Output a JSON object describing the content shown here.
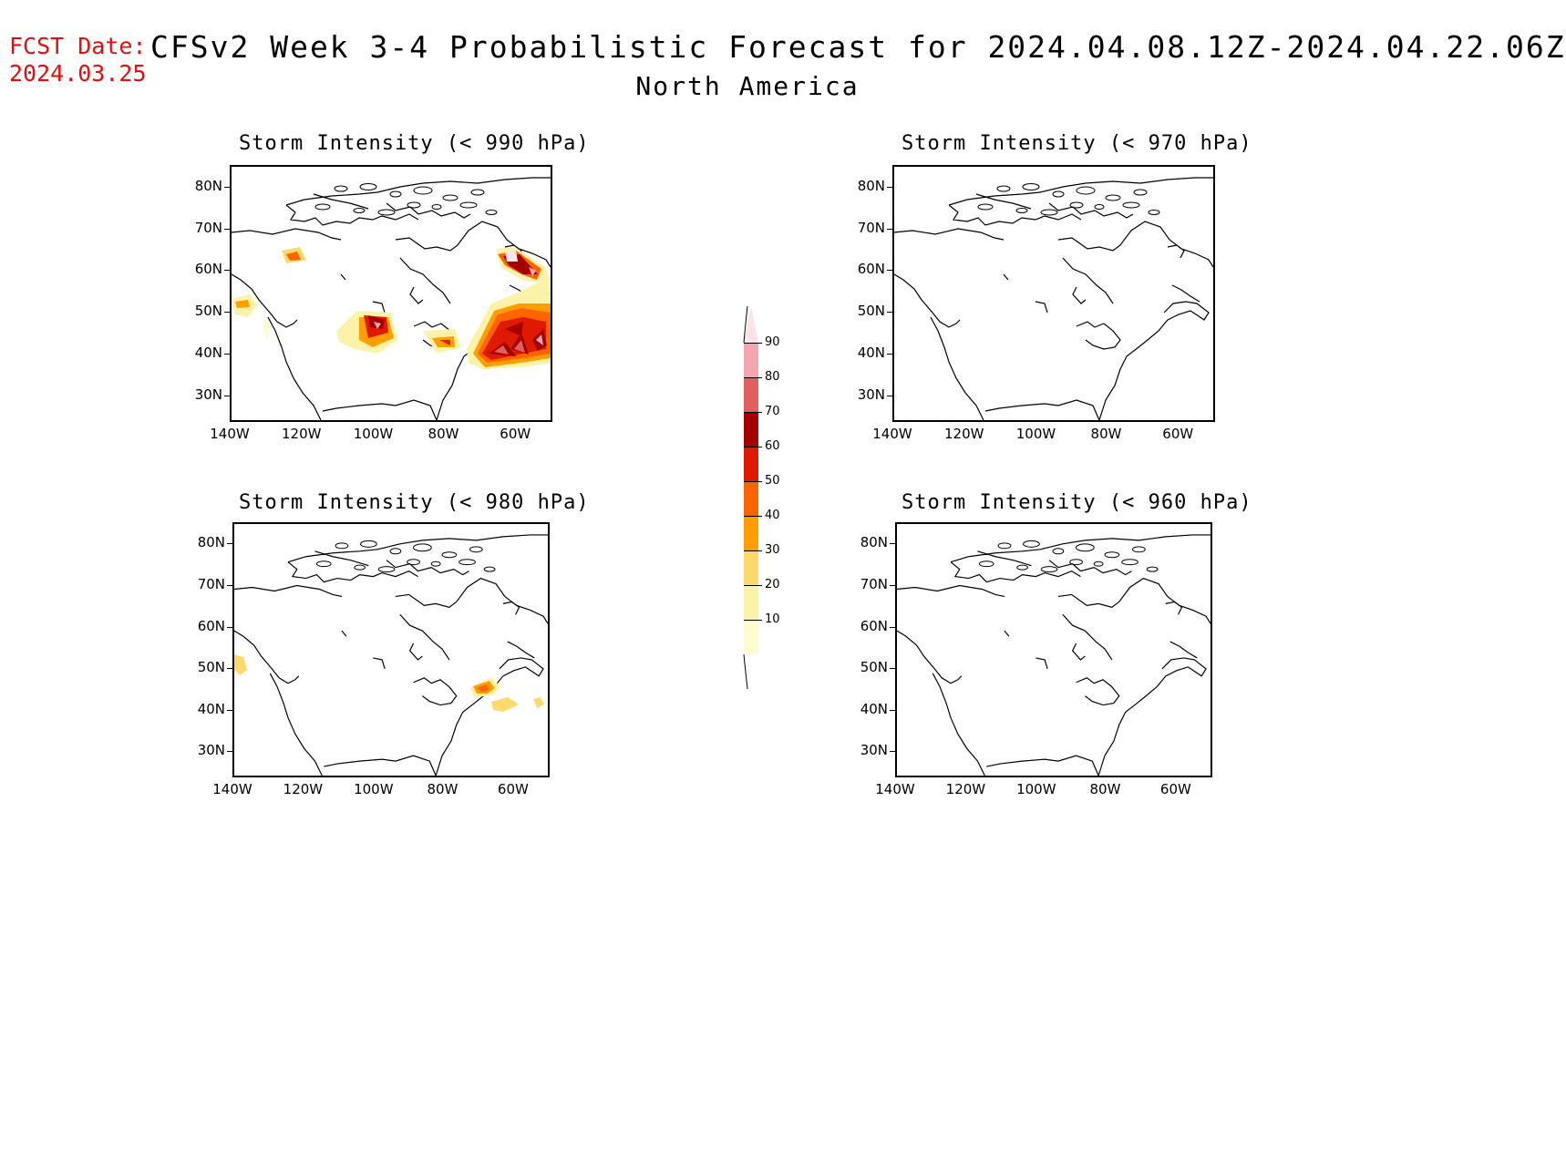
{
  "header": {
    "fcst_label": "FCST Date:",
    "fcst_date": "2024.03.25",
    "title": "CFSv2 Week 3-4 Probabilistic Forecast for 2024.04.08.12Z-2024.04.22.06Z",
    "region": "North America"
  },
  "axes": {
    "lat_ticks": [
      "80N",
      "70N",
      "60N",
      "50N",
      "40N",
      "30N"
    ],
    "lon_ticks": [
      "140W",
      "120W",
      "100W",
      "80W",
      "60W"
    ]
  },
  "panels": [
    {
      "id": "p990",
      "title": "Storm Intensity (< 990 hPa)"
    },
    {
      "id": "p970",
      "title": "Storm Intensity (< 970 hPa)"
    },
    {
      "id": "p980",
      "title": "Storm Intensity (< 980 hPa)"
    },
    {
      "id": "p960",
      "title": "Storm Intensity (< 960 hPa)"
    }
  ],
  "colorbar": {
    "labels": [
      "90",
      "80",
      "70",
      "60",
      "50",
      "40",
      "30",
      "20",
      "10"
    ],
    "colors": [
      "#f4a6ae",
      "#e06060",
      "#a40000",
      "#e01a00",
      "#fc6400",
      "#ff9e00",
      "#fcd96a",
      "#fdf3a8",
      "#fffcd0"
    ],
    "top_arrow_color": "#fde3e6"
  },
  "colors": {
    "fcst": "#e01010"
  }
}
